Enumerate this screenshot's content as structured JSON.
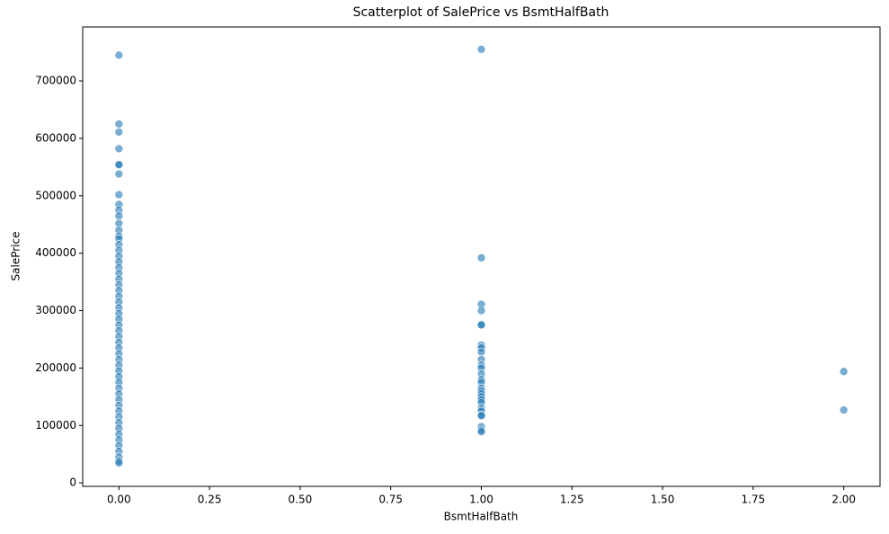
{
  "chart_data": {
    "type": "scatter",
    "title": "Scatterplot of SalePrice vs BsmtHalfBath",
    "x_label": "BsmtHalfBath",
    "y_label": "SalePrice",
    "color": "#1f77b4",
    "x": [
      0,
      0,
      0,
      0,
      0,
      0,
      0,
      0,
      0,
      0,
      0,
      0,
      0,
      0,
      0,
      0,
      0,
      0,
      0,
      0,
      0,
      0,
      0,
      0,
      0,
      0,
      0,
      0,
      0,
      0,
      0,
      0,
      0,
      0,
      0,
      0,
      0,
      0,
      0,
      0,
      0,
      0,
      0,
      0,
      0,
      0,
      0,
      0,
      0,
      0,
      0,
      0,
      0,
      0,
      0,
      1,
      1,
      1,
      1,
      1,
      1,
      1,
      1,
      1,
      1,
      1,
      1,
      1,
      1,
      1,
      1,
      1,
      1,
      1,
      1,
      1,
      1,
      1,
      1,
      1,
      1,
      1,
      1,
      2,
      2
    ],
    "values": [
      745000,
      625000,
      611000,
      582000,
      555000,
      554000,
      538000,
      502000,
      485000,
      475000,
      465000,
      452000,
      440000,
      430000,
      425000,
      415000,
      405000,
      395000,
      385000,
      375000,
      365000,
      355000,
      345000,
      335000,
      325000,
      315000,
      305000,
      295000,
      285000,
      275000,
      265000,
      255000,
      245000,
      235000,
      225000,
      215000,
      205000,
      195000,
      185000,
      175000,
      165000,
      155000,
      145000,
      135000,
      125000,
      115000,
      105000,
      95000,
      85000,
      75000,
      65000,
      55000,
      45000,
      37900,
      34900,
      755000,
      392000,
      311000,
      300000,
      276000,
      275000,
      240000,
      235000,
      228000,
      215000,
      205000,
      200000,
      190000,
      180000,
      175000,
      165000,
      160000,
      155000,
      150000,
      145000,
      140000,
      130000,
      125000,
      118000,
      117000,
      98000,
      92000,
      89000,
      194000,
      127000
    ],
    "xlim": [
      -0.1,
      2.1
    ],
    "ylim": [
      -6000,
      794000
    ],
    "xticks": [
      {
        "value": 0,
        "label": "0.00"
      },
      {
        "value": 0.25,
        "label": "0.25"
      },
      {
        "value": 0.5,
        "label": "0.50"
      },
      {
        "value": 0.75,
        "label": "0.75"
      },
      {
        "value": 1,
        "label": "1.00"
      },
      {
        "value": 1.25,
        "label": "1.25"
      },
      {
        "value": 1.5,
        "label": "1.50"
      },
      {
        "value": 1.75,
        "label": "1.75"
      },
      {
        "value": 2,
        "label": "2.00"
      }
    ],
    "yticks": [
      0,
      100000,
      200000,
      300000,
      400000,
      500000,
      600000,
      700000
    ]
  }
}
